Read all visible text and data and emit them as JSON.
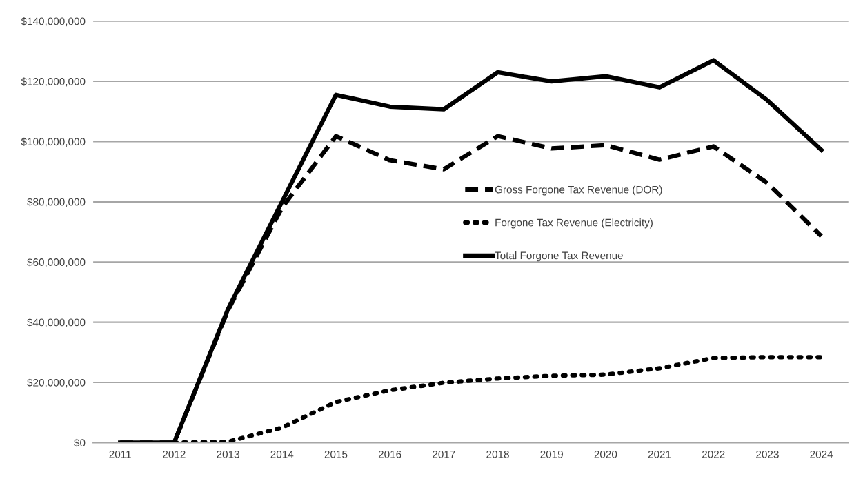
{
  "chart_data": {
    "type": "line",
    "categories": [
      "2011",
      "2012",
      "2013",
      "2014",
      "2015",
      "2016",
      "2017",
      "2018",
      "2019",
      "2020",
      "2021",
      "2022",
      "2023",
      "2024"
    ],
    "series": [
      {
        "name": "Gross Forgone Tax Revenue (DOR)",
        "color": "#000000",
        "line_style": "dashed",
        "values": [
          0,
          0,
          44000000,
          78000000,
          101800000,
          93800000,
          90800000,
          101800000,
          97700000,
          98800000,
          94000000,
          98400000,
          86200000,
          68600000
        ]
      },
      {
        "name": "Forgone Tax Revenue (Electricity)",
        "color": "#000000",
        "line_style": "dotted",
        "values": [
          null,
          0,
          300000,
          5000000,
          13500000,
          17400000,
          19900000,
          21300000,
          22200000,
          22600000,
          24700000,
          28100000,
          28400000,
          28400000
        ]
      },
      {
        "name": "Total Forgone Tax Revenue",
        "color": "#000000",
        "line_style": "solid",
        "values": [
          0,
          0,
          44400000,
          80000000,
          115500000,
          111600000,
          110700000,
          123000000,
          120000000,
          121700000,
          118000000,
          127000000,
          113700000,
          97200000
        ]
      }
    ],
    "ylim": [
      0,
      140000000
    ],
    "yticks": [
      {
        "value": 0,
        "label": "$0"
      },
      {
        "value": 20000000,
        "label": "$20,000,000"
      },
      {
        "value": 40000000,
        "label": "$40,000,000"
      },
      {
        "value": 60000000,
        "label": "$60,000,000"
      },
      {
        "value": 80000000,
        "label": "$80,000,000"
      },
      {
        "value": 100000000,
        "label": "$100,000,000"
      },
      {
        "value": 120000000,
        "label": "$120,000,000"
      },
      {
        "value": 140000000,
        "label": "$140,000,000"
      }
    ],
    "grid": "y",
    "legend": "center",
    "marker": "none"
  }
}
